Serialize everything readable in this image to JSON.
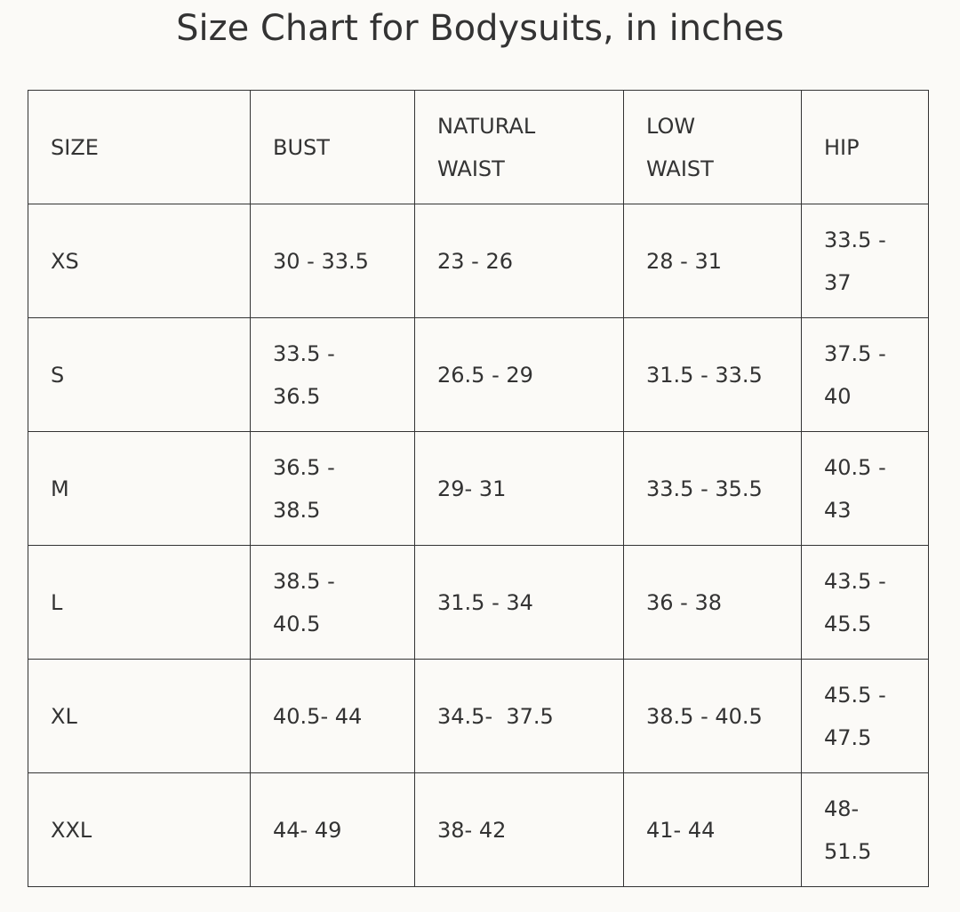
{
  "title": "Size Chart for Bodysuits, in inches",
  "table": {
    "headers": [
      "SIZE",
      "BUST",
      "NATURAL WAIST",
      "LOW WAIST",
      "HIP"
    ],
    "rows": [
      [
        "XS",
        "30 - 33.5",
        "23 - 26",
        "28 - 31",
        "33.5 - 37"
      ],
      [
        "S",
        "33.5 - 36.5",
        "26.5 - 29",
        "31.5 - 33.5",
        "37.5 - 40"
      ],
      [
        "M",
        "36.5 - 38.5",
        "29- 31",
        "33.5 - 35.5",
        "40.5 - 43"
      ],
      [
        "L",
        "38.5 - 40.5",
        "31.5 - 34",
        "36 - 38",
        "43.5 - 45.5"
      ],
      [
        "XL",
        "40.5- 44",
        "34.5-  37.5",
        "38.5 - 40.5",
        "45.5 - 47.5"
      ],
      [
        "XXL",
        "44- 49",
        "38- 42",
        "41- 44",
        "48- 51.5"
      ]
    ]
  }
}
